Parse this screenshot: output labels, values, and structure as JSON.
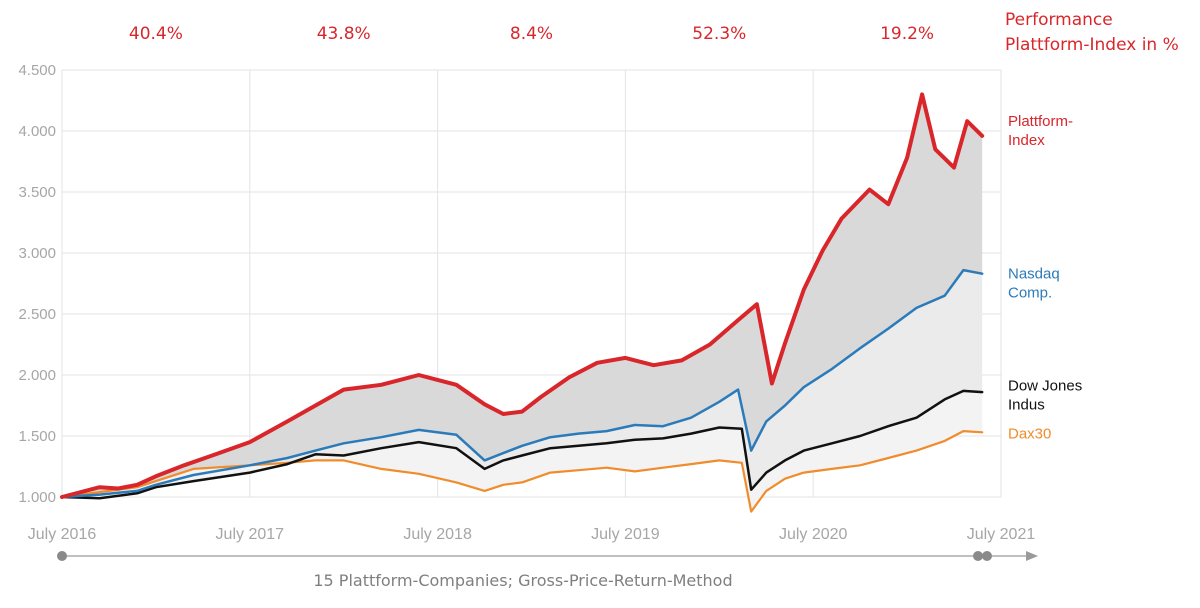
{
  "chart_data": {
    "type": "line",
    "title": "",
    "xlabel": "",
    "ylabel": "",
    "ylim": [
      1000,
      4500
    ],
    "yticks": [
      "1.000",
      "1.500",
      "2.000",
      "2.500",
      "3.000",
      "3.500",
      "4.000",
      "4.500"
    ],
    "ytick_values": [
      1000,
      1500,
      2000,
      2500,
      3000,
      3500,
      4000,
      4500
    ],
    "xlim": [
      2016.5,
      2021.5
    ],
    "xticks": [
      "July 2016",
      "July 2017",
      "July 2018",
      "July 2019",
      "July 2020",
      "July 2021"
    ],
    "xtick_values": [
      2016.5,
      2017.5,
      2018.5,
      2019.5,
      2020.5,
      2021.5
    ],
    "grid": true,
    "performance_title": [
      "Performance",
      "Plattform-Index in %"
    ],
    "performance_labels": [
      {
        "year": "2016-2017",
        "text": "40.4%"
      },
      {
        "year": "2017-2018",
        "text": "43.8%"
      },
      {
        "year": "2018-2019",
        "text": "8.4%"
      },
      {
        "year": "2019-2020",
        "text": "52.3%"
      },
      {
        "year": "2020-2021",
        "text": "19.2%"
      }
    ],
    "footnote": "15 Plattform-Companies; Gross-Price-Return-Method",
    "series": [
      {
        "name": "Plattform-Index",
        "legend": [
          "Plattform-",
          "Index"
        ],
        "color": "#d9262b",
        "x": [
          2016.5,
          2016.7,
          2016.8,
          2016.9,
          2017.0,
          2017.15,
          2017.3,
          2017.5,
          2017.7,
          2017.85,
          2018.0,
          2018.2,
          2018.4,
          2018.5,
          2018.6,
          2018.75,
          2018.85,
          2018.95,
          2019.05,
          2019.2,
          2019.35,
          2019.5,
          2019.65,
          2019.8,
          2019.95,
          2020.1,
          2020.2,
          2020.28,
          2020.35,
          2020.45,
          2020.55,
          2020.65,
          2020.8,
          2020.9,
          2021.0,
          2021.08,
          2021.15,
          2021.25,
          2021.32,
          2021.4
        ],
        "values": [
          1000,
          1080,
          1070,
          1100,
          1170,
          1260,
          1340,
          1450,
          1620,
          1750,
          1880,
          1920,
          2000,
          1960,
          1920,
          1760,
          1680,
          1700,
          1820,
          1980,
          2100,
          2140,
          2080,
          2120,
          2250,
          2450,
          2580,
          1930,
          2260,
          2700,
          3020,
          3280,
          3520,
          3400,
          3780,
          4300,
          3850,
          3700,
          4080,
          3960
        ]
      },
      {
        "name": "Nasdaq Comp.",
        "legend": [
          "Nasdaq",
          "Comp."
        ],
        "color": "#2b7bba",
        "x": [
          2016.5,
          2016.7,
          2016.9,
          2017.0,
          2017.2,
          2017.5,
          2017.7,
          2017.85,
          2018.0,
          2018.2,
          2018.4,
          2018.6,
          2018.75,
          2018.85,
          2018.95,
          2019.1,
          2019.25,
          2019.4,
          2019.55,
          2019.7,
          2019.85,
          2020.0,
          2020.1,
          2020.17,
          2020.25,
          2020.35,
          2020.45,
          2020.6,
          2020.75,
          2020.9,
          2021.05,
          2021.2,
          2021.3,
          2021.4
        ],
        "values": [
          1000,
          1020,
          1050,
          1100,
          1180,
          1260,
          1320,
          1380,
          1440,
          1490,
          1550,
          1510,
          1300,
          1360,
          1420,
          1490,
          1520,
          1540,
          1590,
          1580,
          1650,
          1780,
          1880,
          1380,
          1620,
          1750,
          1900,
          2050,
          2220,
          2380,
          2550,
          2650,
          2860,
          2830
        ]
      },
      {
        "name": "Dow Jones Indus",
        "legend": [
          "Dow Jones",
          "Indus"
        ],
        "color": "#111111",
        "x": [
          2016.5,
          2016.7,
          2016.9,
          2017.0,
          2017.2,
          2017.5,
          2017.7,
          2017.85,
          2018.0,
          2018.2,
          2018.4,
          2018.6,
          2018.75,
          2018.85,
          2018.95,
          2019.1,
          2019.25,
          2019.4,
          2019.55,
          2019.7,
          2019.85,
          2020.0,
          2020.12,
          2020.17,
          2020.25,
          2020.35,
          2020.45,
          2020.6,
          2020.75,
          2020.9,
          2021.05,
          2021.2,
          2021.3,
          2021.4
        ],
        "values": [
          1000,
          990,
          1030,
          1080,
          1130,
          1200,
          1270,
          1350,
          1340,
          1400,
          1450,
          1400,
          1230,
          1300,
          1340,
          1400,
          1420,
          1440,
          1470,
          1480,
          1520,
          1570,
          1560,
          1060,
          1200,
          1300,
          1380,
          1440,
          1500,
          1580,
          1650,
          1800,
          1870,
          1860
        ]
      },
      {
        "name": "Dax30",
        "legend": [
          "Dax30"
        ],
        "color": "#f08c2c",
        "x": [
          2016.5,
          2016.7,
          2016.9,
          2017.0,
          2017.2,
          2017.5,
          2017.7,
          2017.85,
          2018.0,
          2018.2,
          2018.4,
          2018.6,
          2018.75,
          2018.85,
          2018.95,
          2019.1,
          2019.25,
          2019.4,
          2019.55,
          2019.7,
          2019.85,
          2020.0,
          2020.12,
          2020.17,
          2020.25,
          2020.35,
          2020.45,
          2020.6,
          2020.75,
          2020.9,
          2021.05,
          2021.2,
          2021.3,
          2021.4
        ],
        "values": [
          1000,
          1040,
          1080,
          1130,
          1230,
          1260,
          1280,
          1300,
          1300,
          1230,
          1190,
          1120,
          1050,
          1100,
          1120,
          1200,
          1220,
          1240,
          1210,
          1240,
          1270,
          1300,
          1280,
          880,
          1050,
          1150,
          1200,
          1230,
          1260,
          1320,
          1380,
          1460,
          1540,
          1530
        ]
      }
    ]
  }
}
